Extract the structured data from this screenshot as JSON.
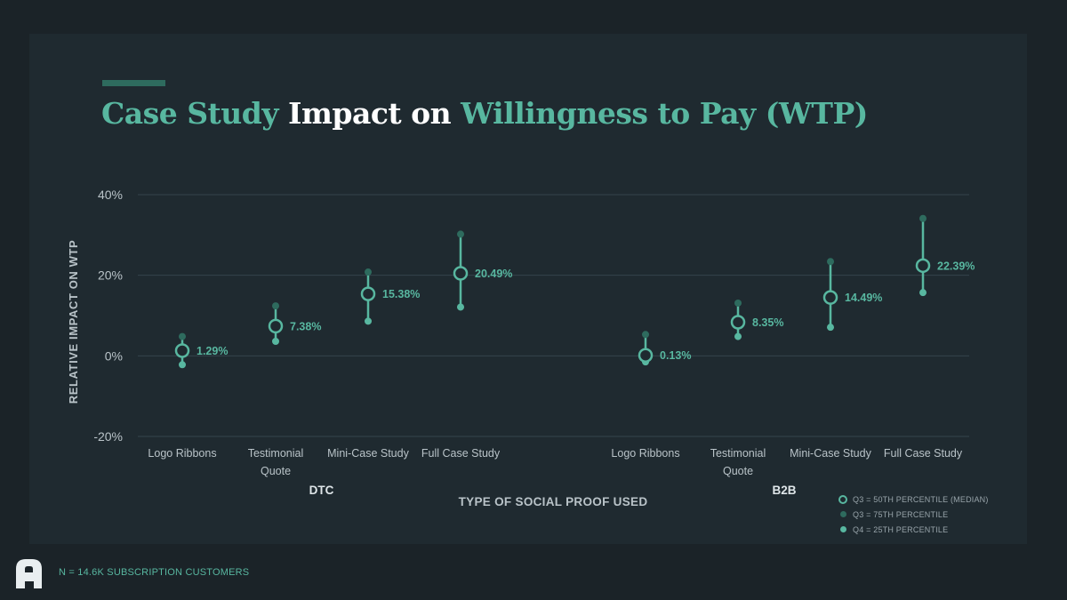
{
  "title": {
    "part1": "Case Study",
    "part2": "Impact on",
    "part3": "Willingness to Pay (WTP)"
  },
  "colors": {
    "accent": "#58b7a0",
    "dark_accent": "#2e6b5e",
    "background": "#1b2328",
    "panel": "#1f2a30"
  },
  "chart_data": {
    "type": "scatter",
    "title": "Case Study Impact on Willingness to Pay (WTP)",
    "xlabel": "TYPE OF SOCIAL PROOF USED",
    "ylabel": "RELATIVE IMPACT ON WTP",
    "ylim": [
      -20,
      40
    ],
    "yticks": [
      40,
      20,
      0,
      -20
    ],
    "ytick_labels": [
      "40%",
      "20%",
      "0%",
      "-20%"
    ],
    "grid": true,
    "legend_position": "bottom-right",
    "groups": [
      {
        "name": "DTC",
        "categories": [
          {
            "label_lines": [
              "Logo Ribbons"
            ],
            "median": 1.29,
            "median_label": "1.29%",
            "q75": 4.8,
            "q25": -2.2
          },
          {
            "label_lines": [
              "Testimonial",
              "Quote"
            ],
            "median": 7.38,
            "median_label": "7.38%",
            "q75": 12.4,
            "q25": 3.6
          },
          {
            "label_lines": [
              "Mini-Case Study"
            ],
            "median": 15.38,
            "median_label": "15.38%",
            "q75": 20.8,
            "q25": 8.6
          },
          {
            "label_lines": [
              "Full Case Study"
            ],
            "median": 20.49,
            "median_label": "20.49%",
            "q75": 30.2,
            "q25": 12.1
          }
        ]
      },
      {
        "name": "B2B",
        "categories": [
          {
            "label_lines": [
              "Logo Ribbons"
            ],
            "median": 0.13,
            "median_label": "0.13%",
            "q75": 5.3,
            "q25": -1.5
          },
          {
            "label_lines": [
              "Testimonial",
              "Quote"
            ],
            "median": 8.35,
            "median_label": "8.35%",
            "q75": 13.1,
            "q25": 4.8
          },
          {
            "label_lines": [
              "Mini-Case Study"
            ],
            "median": 14.49,
            "median_label": "14.49%",
            "q75": 23.4,
            "q25": 7.1
          },
          {
            "label_lines": [
              "Full Case Study"
            ],
            "median": 22.39,
            "median_label": "22.39%",
            "q75": 34.1,
            "q25": 15.7
          }
        ]
      }
    ],
    "legend": [
      {
        "key": "median",
        "label": "Q3 = 50TH PERCENTILE (MEDIAN)"
      },
      {
        "key": "q75",
        "label": "Q3 = 75TH PERCENTILE"
      },
      {
        "key": "q25",
        "label": "Q4 = 25TH PERCENTILE"
      }
    ]
  },
  "footer": {
    "logo_icon": "brand-logo-icon",
    "note": "N = 14.6K SUBSCRIPTION CUSTOMERS"
  }
}
